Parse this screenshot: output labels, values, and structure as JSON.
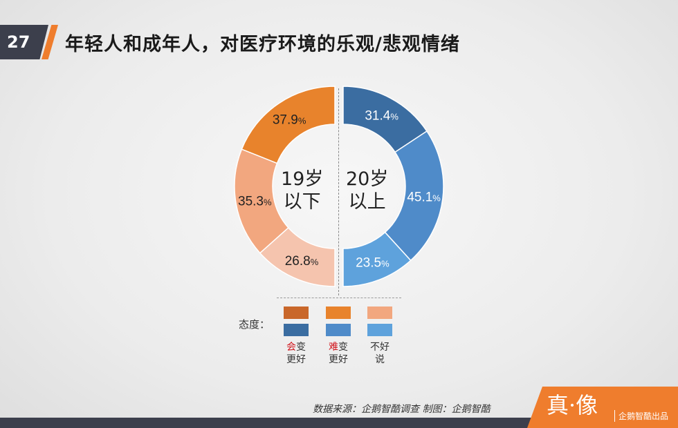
{
  "page_number": "27",
  "title": "年轻人和成年人，对医疗环境的乐观/悲观情绪",
  "colors": {
    "orange_dark": "#e8832c",
    "orange_mid": "#f2a77f",
    "orange_light": "#f5c4ae",
    "blue_dark": "#3b6da1",
    "blue_mid": "#4f8bc9",
    "blue_light": "#5ea2dc"
  },
  "chart_data": [
    {
      "type": "pie",
      "group": "under19",
      "center_label": [
        "19岁",
        "以下"
      ],
      "categories": [
        "会变更好",
        "难变更好",
        "不好说"
      ],
      "values": [
        37.9,
        35.3,
        26.8
      ],
      "value_labels": [
        "37.9",
        "35.3",
        "26.8"
      ],
      "unit": "%"
    },
    {
      "type": "pie",
      "group": "over20",
      "center_label": [
        "20岁",
        "以上"
      ],
      "categories": [
        "会变更好",
        "难变更好",
        "不好说"
      ],
      "values": [
        31.4,
        45.1,
        23.5
      ],
      "value_labels": [
        "31.4",
        "45.1",
        "23.5"
      ],
      "unit": "%"
    }
  ],
  "legend": {
    "title": "态度：",
    "items": [
      {
        "hl": "会",
        "rest1": "变",
        "line2": "更好"
      },
      {
        "hl": "难",
        "rest1": "变",
        "line2": "更好"
      },
      {
        "hl": "",
        "rest1": "不好",
        "line2": "说"
      }
    ]
  },
  "source": "数据来源：企鹅智酷调查    制图：企鹅智酷",
  "brand": {
    "logo": "真·像",
    "sub": "企鹅智酷出品"
  }
}
